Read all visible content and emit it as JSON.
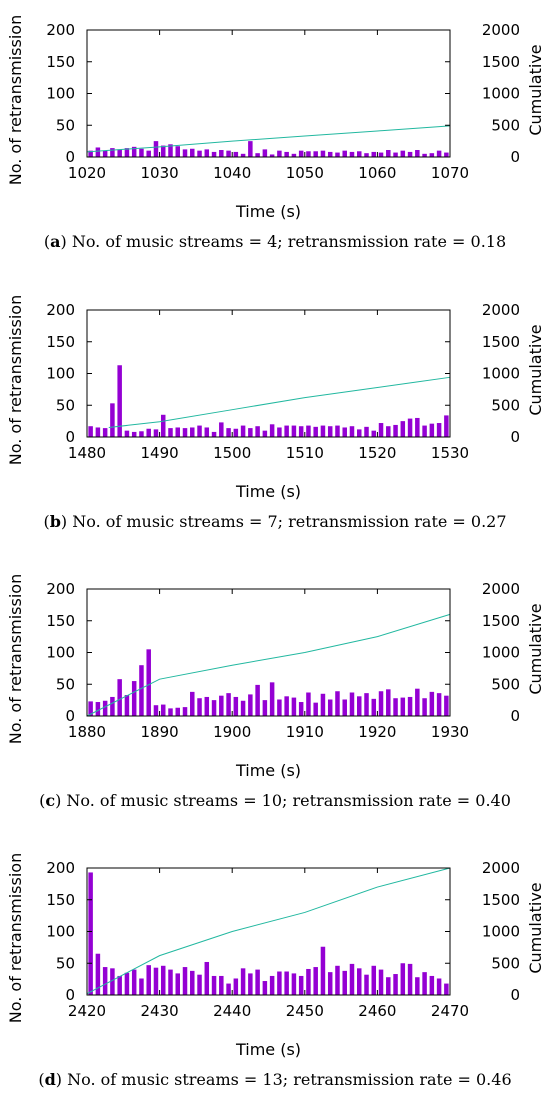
{
  "colors": {
    "bars": "#9400D3",
    "cumulative_line": "#22B8A0",
    "frame": "#000000"
  },
  "chart_data": [
    {
      "type": "bar",
      "caption": {
        "letter": "a",
        "text": "No. of music streams = 4; retransmission rate = 0.18"
      },
      "xlabel": "Time (s)",
      "ylabel": "No. of retransmission",
      "y2label": "Cumulative",
      "xlim": [
        1020,
        1070
      ],
      "ylim": [
        0,
        200
      ],
      "y2lim": [
        0,
        2000
      ],
      "xticks": [
        "1020",
        "1030",
        "1040",
        "1050",
        "1060",
        "1070"
      ],
      "yticks": [
        "0",
        "50",
        "100",
        "150",
        "200"
      ],
      "y2ticks": [
        "0",
        "500",
        "1000",
        "1500",
        "2000"
      ],
      "series": [
        {
          "type": "bar",
          "x": [
            1020,
            1021,
            1022,
            1023,
            1024,
            1025,
            1026,
            1027,
            1028,
            1029,
            1030,
            1031,
            1032,
            1033,
            1034,
            1035,
            1036,
            1037,
            1038,
            1039,
            1040,
            1041,
            1042,
            1043,
            1044,
            1045,
            1046,
            1047,
            1048,
            1049,
            1050,
            1051,
            1052,
            1053,
            1054,
            1055,
            1056,
            1057,
            1058,
            1059,
            1060,
            1061,
            1062,
            1063,
            1064,
            1065,
            1066,
            1067,
            1068,
            1069
          ],
          "values": [
            10,
            15,
            10,
            14,
            12,
            14,
            16,
            13,
            10,
            25,
            18,
            20,
            17,
            12,
            13,
            10,
            12,
            8,
            11,
            10,
            8,
            5,
            25,
            6,
            12,
            4,
            10,
            8,
            5,
            10,
            9,
            9,
            10,
            8,
            7,
            10,
            8,
            9,
            6,
            8,
            7,
            11,
            7,
            10,
            8,
            11,
            5,
            6,
            10,
            7
          ]
        },
        {
          "type": "line",
          "x": [
            1020,
            1030,
            1040,
            1050,
            1060,
            1070
          ],
          "values": [
            80,
            160,
            250,
            330,
            410,
            490
          ]
        }
      ]
    },
    {
      "type": "bar",
      "caption": {
        "letter": "b",
        "text": "No. of music streams = 7; retransmission rate = 0.27"
      },
      "xlabel": "Time (s)",
      "ylabel": "No. of retransmission",
      "y2label": "Cumulative",
      "xlim": [
        1480,
        1530
      ],
      "ylim": [
        0,
        200
      ],
      "y2lim": [
        0,
        2000
      ],
      "xticks": [
        "1480",
        "1490",
        "1500",
        "1510",
        "1520",
        "1530"
      ],
      "yticks": [
        "0",
        "50",
        "100",
        "150",
        "200"
      ],
      "y2ticks": [
        "0",
        "500",
        "1000",
        "1500",
        "2000"
      ],
      "series": [
        {
          "type": "bar",
          "x": [
            1480,
            1481,
            1482,
            1483,
            1484,
            1485,
            1486,
            1487,
            1488,
            1489,
            1490,
            1491,
            1492,
            1493,
            1494,
            1495,
            1496,
            1497,
            1498,
            1499,
            1500,
            1501,
            1502,
            1503,
            1504,
            1505,
            1506,
            1507,
            1508,
            1509,
            1510,
            1511,
            1512,
            1513,
            1514,
            1515,
            1516,
            1517,
            1518,
            1519,
            1520,
            1521,
            1522,
            1523,
            1524,
            1525,
            1526,
            1527,
            1528,
            1529
          ],
          "values": [
            17,
            15,
            14,
            53,
            113,
            10,
            8,
            9,
            13,
            12,
            35,
            14,
            15,
            14,
            15,
            18,
            15,
            8,
            23,
            14,
            13,
            18,
            14,
            17,
            10,
            20,
            15,
            18,
            18,
            17,
            18,
            16,
            18,
            17,
            18,
            15,
            17,
            12,
            16,
            10,
            22,
            17,
            19,
            25,
            29,
            30,
            18,
            21,
            22,
            34
          ]
        },
        {
          "type": "line",
          "x": [
            1483,
            1490,
            1500,
            1510,
            1520,
            1530
          ],
          "values": [
            150,
            240,
            430,
            620,
            780,
            940
          ]
        }
      ]
    },
    {
      "type": "bar",
      "caption": {
        "letter": "c",
        "text": "No. of music streams = 10; retransmission rate = 0.40"
      },
      "xlabel": "Time (s)",
      "ylabel": "No. of retransmission",
      "y2label": "Cumulative",
      "xlim": [
        1880,
        1930
      ],
      "ylim": [
        0,
        200
      ],
      "y2lim": [
        0,
        2000
      ],
      "xticks": [
        "1880",
        "1890",
        "1900",
        "1910",
        "1920",
        "1930"
      ],
      "yticks": [
        "0",
        "50",
        "100",
        "150",
        "200"
      ],
      "y2ticks": [
        "0",
        "500",
        "1000",
        "1500",
        "2000"
      ],
      "series": [
        {
          "type": "bar",
          "x": [
            1880,
            1881,
            1882,
            1883,
            1884,
            1885,
            1886,
            1887,
            1888,
            1889,
            1890,
            1891,
            1892,
            1893,
            1894,
            1895,
            1896,
            1897,
            1898,
            1899,
            1900,
            1901,
            1902,
            1903,
            1904,
            1905,
            1906,
            1907,
            1908,
            1909,
            1910,
            1911,
            1912,
            1913,
            1914,
            1915,
            1916,
            1917,
            1918,
            1919,
            1920,
            1921,
            1922,
            1923,
            1924,
            1925,
            1926,
            1927,
            1928,
            1929
          ],
          "values": [
            23,
            22,
            24,
            30,
            58,
            33,
            55,
            80,
            105,
            17,
            18,
            12,
            13,
            14,
            38,
            28,
            30,
            25,
            32,
            36,
            30,
            24,
            34,
            49,
            25,
            53,
            26,
            31,
            29,
            22,
            37,
            21,
            35,
            26,
            39,
            26,
            37,
            31,
            36,
            27,
            39,
            42,
            28,
            29,
            30,
            43,
            28,
            38,
            36,
            32
          ]
        },
        {
          "type": "line",
          "x": [
            1880,
            1890,
            1900,
            1910,
            1920,
            1930
          ],
          "values": [
            0,
            580,
            800,
            1000,
            1250,
            1600
          ]
        }
      ]
    },
    {
      "type": "bar",
      "caption": {
        "letter": "d",
        "text": "No. of music streams = 13; retransmission rate = 0.46"
      },
      "xlabel": "Time (s)",
      "ylabel": "No. of retransmission",
      "y2label": "Cumulative",
      "xlim": [
        2420,
        2470
      ],
      "ylim": [
        0,
        200
      ],
      "y2lim": [
        0,
        2000
      ],
      "xticks": [
        "2420",
        "2430",
        "2440",
        "2450",
        "2460",
        "2470"
      ],
      "yticks": [
        "0",
        "50",
        "100",
        "150",
        "200"
      ],
      "y2ticks": [
        "0",
        "500",
        "1000",
        "1500",
        "2000"
      ],
      "series": [
        {
          "type": "bar",
          "x": [
            2420,
            2421,
            2422,
            2423,
            2424,
            2425,
            2426,
            2427,
            2428,
            2429,
            2430,
            2431,
            2432,
            2433,
            2434,
            2435,
            2436,
            2437,
            2438,
            2439,
            2440,
            2441,
            2442,
            2443,
            2444,
            2445,
            2446,
            2447,
            2448,
            2449,
            2450,
            2451,
            2452,
            2453,
            2454,
            2455,
            2456,
            2457,
            2458,
            2459,
            2460,
            2461,
            2462,
            2463,
            2464,
            2465,
            2466,
            2467,
            2468,
            2469
          ],
          "values": [
            193,
            65,
            44,
            42,
            30,
            35,
            40,
            26,
            47,
            43,
            46,
            40,
            34,
            44,
            38,
            32,
            52,
            30,
            30,
            18,
            26,
            42,
            34,
            40,
            22,
            30,
            37,
            37,
            34,
            30,
            41,
            44,
            76,
            36,
            46,
            38,
            49,
            42,
            32,
            46,
            40,
            28,
            33,
            50,
            49,
            28,
            36,
            30,
            26,
            18
          ]
        },
        {
          "type": "line",
          "x": [
            2420,
            2430,
            2440,
            2450,
            2460,
            2470
          ],
          "values": [
            20,
            620,
            1000,
            1300,
            1700,
            2000
          ]
        }
      ]
    }
  ]
}
